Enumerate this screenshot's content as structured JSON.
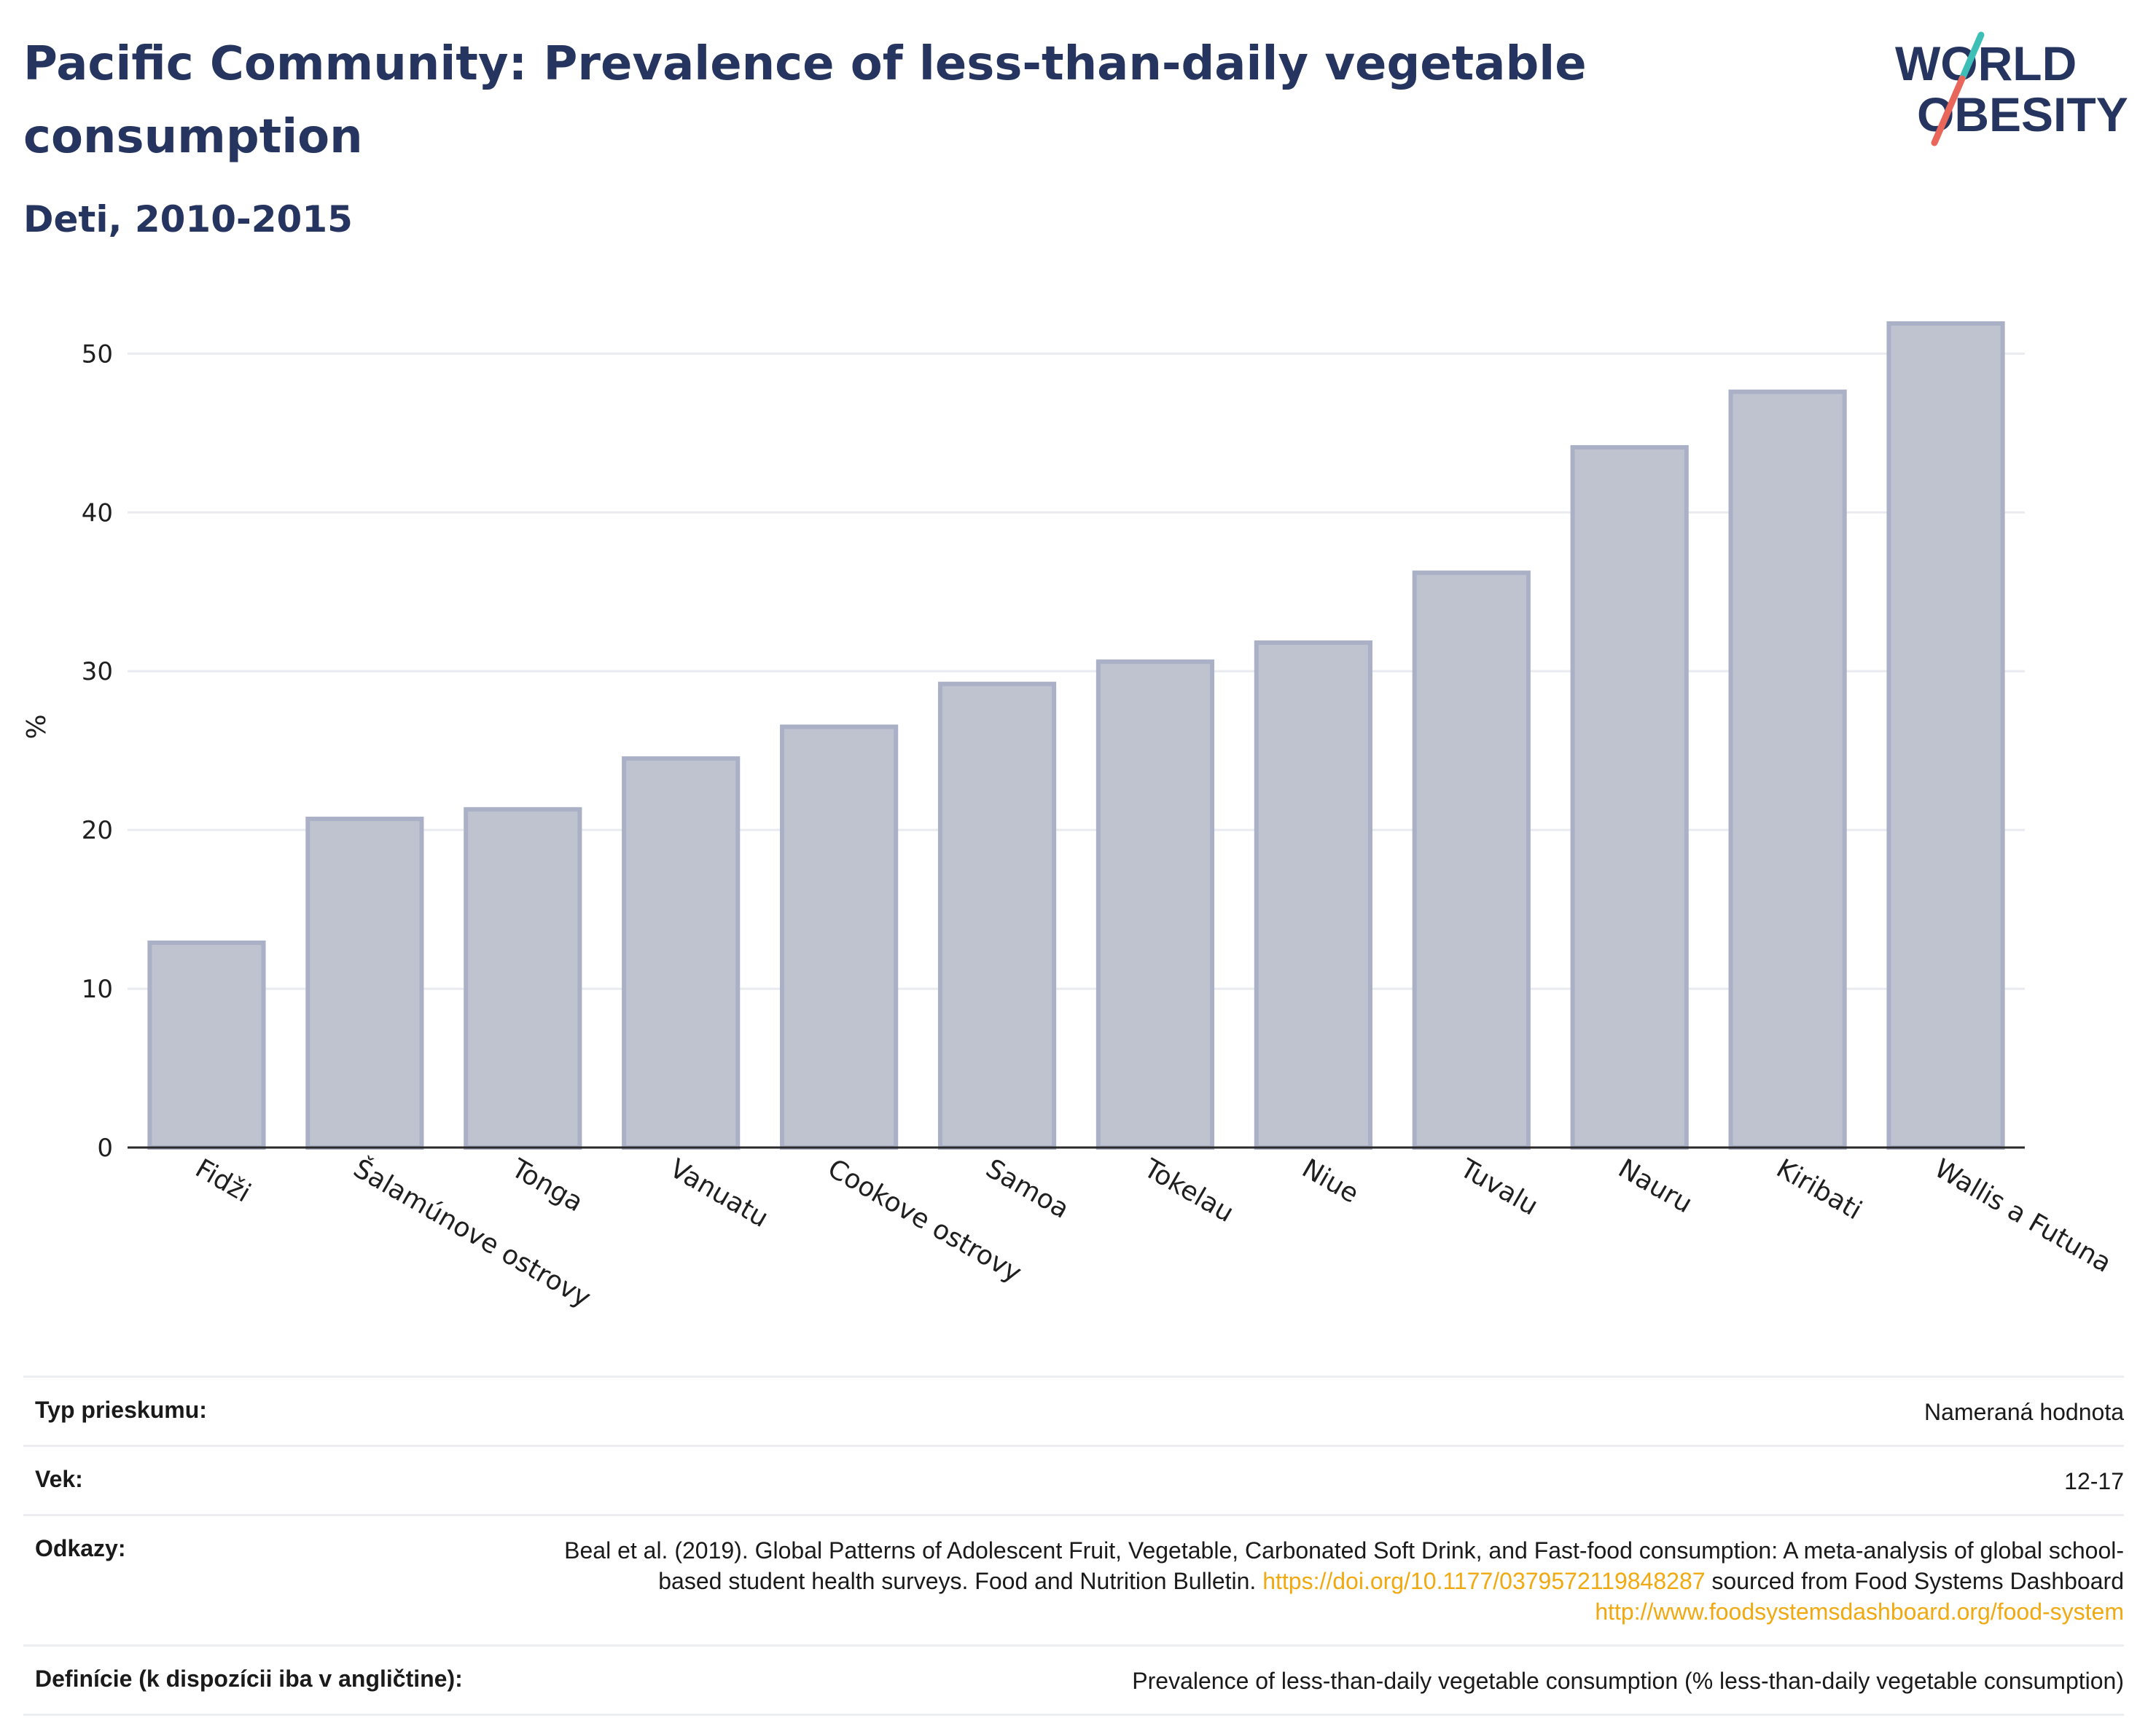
{
  "header": {
    "title": "Pacific Community: Prevalence of less-than-daily vegetable consumption",
    "subtitle": "Deti, 2010-2015",
    "logo_line1": "WORLD",
    "logo_line2": "OBESITY"
  },
  "chart_data": {
    "type": "bar",
    "categories": [
      "Fidži",
      "Šalamúnove ostrovy",
      "Tonga",
      "Vanuatu",
      "Cookove ostrovy",
      "Samoa",
      "Tokelau",
      "Niue",
      "Tuvalu",
      "Nauru",
      "Kiribati",
      "Wallis a Futuna"
    ],
    "values": [
      12.9,
      20.7,
      21.3,
      24.5,
      26.5,
      29.2,
      30.6,
      31.8,
      36.2,
      44.1,
      47.6,
      51.9
    ],
    "ylabel": "%",
    "ylim": [
      0,
      53
    ],
    "yticks": [
      0,
      10,
      20,
      30,
      40,
      50
    ],
    "grid": true,
    "bar_fill": "#bfc3d0",
    "bar_stroke": "#aab0c6"
  },
  "info": {
    "survey_type_label": "Typ prieskumu:",
    "survey_type_value": "Nameraná hodnota",
    "age_label": "Vek:",
    "age_value": "12-17",
    "refs_label": "Odkazy:",
    "refs_text1": "Beal et al. (2019). Global Patterns of Adolescent Fruit, Vegetable, Carbonated Soft Drink, and Fast-food consumption: A meta-analysis of global school-based student health surveys. Food and Nutrition Bulletin. ",
    "refs_link1": "https://doi.org/10.1177/0379572119848287",
    "refs_text2": " sourced from Food Systems Dashboard ",
    "refs_link2": "http://www.foodsystemsdashboard.org/food-system",
    "def_label": "Definície (k dispozícii iba v angličtine):",
    "def_value": "Prevalence of less-than-daily vegetable consumption (% less-than-daily vegetable consumption)"
  },
  "colors": {
    "title": "#26355f",
    "link": "#f0a910",
    "logo_teal": "#3dbfb8",
    "logo_coral": "#e8675a"
  }
}
